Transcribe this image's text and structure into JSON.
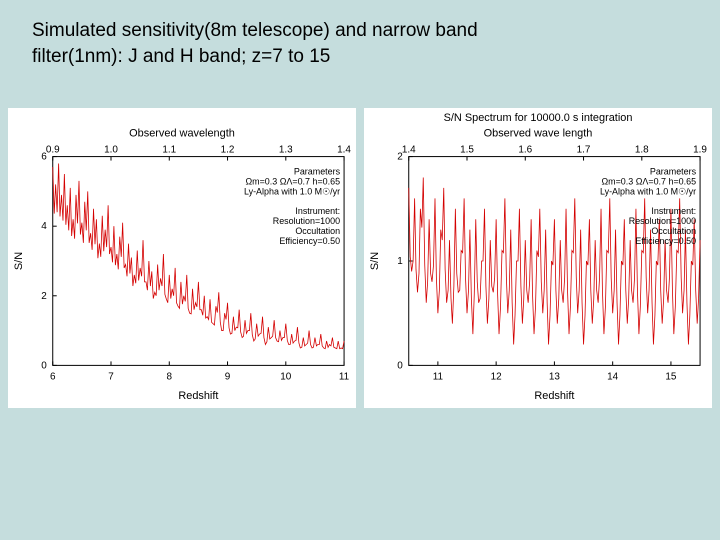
{
  "slide": {
    "title_line1": "Simulated sensitivity(8m telescope) and narrow band",
    "title_line2": "filter(1nm): J and H band; z=7 to 15",
    "background_color": "#c5dddd",
    "title_fontsize": 19,
    "title_color": "#000000"
  },
  "left_chart": {
    "type": "line",
    "title": "",
    "top_axis_label": "Observed wavelength",
    "top_xlim": [
      0.9,
      1.4
    ],
    "top_xticks": [
      0.9,
      1.0,
      1.1,
      1.2,
      1.3,
      1.4
    ],
    "xlabel": "Redshift",
    "xlim": [
      6,
      11
    ],
    "xticks": [
      6,
      7,
      8,
      9,
      10,
      11
    ],
    "ylabel": "S/N",
    "ylim": [
      0,
      6
    ],
    "yticks": [
      0,
      2,
      4,
      6
    ],
    "line_color": "#d40000",
    "line_width": 0.8,
    "background_color": "#ffffff",
    "axis_color": "#000000",
    "param_lines": [
      "Parameters",
      "Ωm=0.3 ΩΛ=0.7 h=0.65",
      "Ly-Alpha with 1.0 M☉/yr",
      "",
      "Instrument:",
      "Resolution=1000",
      "Occultation",
      "Efficiency=0.50"
    ],
    "data": {
      "x": [
        6.0,
        6.05,
        6.1,
        6.15,
        6.2,
        6.25,
        6.3,
        6.35,
        6.4,
        6.45,
        6.5,
        6.55,
        6.6,
        6.65,
        6.7,
        6.75,
        6.8,
        6.85,
        6.9,
        6.95,
        7.0,
        7.05,
        7.1,
        7.15,
        7.2,
        7.25,
        7.3,
        7.35,
        7.4,
        7.45,
        7.5,
        7.55,
        7.6,
        7.65,
        7.7,
        7.75,
        7.8,
        7.85,
        7.9,
        7.95,
        8.0,
        8.05,
        8.1,
        8.15,
        8.2,
        8.25,
        8.3,
        8.35,
        8.4,
        8.45,
        8.5,
        8.55,
        8.6,
        8.65,
        8.7,
        8.75,
        8.8,
        8.85,
        8.9,
        8.95,
        9.0,
        9.05,
        9.1,
        9.15,
        9.2,
        9.25,
        9.3,
        9.35,
        9.4,
        9.45,
        9.5,
        9.55,
        9.6,
        9.65,
        9.7,
        9.75,
        9.8,
        9.85,
        9.9,
        9.95,
        10.0,
        10.05,
        10.1,
        10.15,
        10.2,
        10.25,
        10.3,
        10.35,
        10.4,
        10.45,
        10.5,
        10.55,
        10.6,
        10.65,
        10.7,
        10.75,
        10.8,
        10.85,
        10.9,
        10.95,
        11.0
      ],
      "y": [
        5.7,
        5.2,
        5.8,
        4.9,
        5.5,
        4.6,
        5.1,
        4.2,
        4.9,
        5.3,
        4.1,
        4.7,
        5.0,
        3.8,
        4.5,
        4.2,
        3.5,
        4.3,
        3.9,
        4.6,
        3.4,
        4.0,
        3.2,
        3.7,
        4.1,
        2.9,
        3.5,
        3.1,
        2.6,
        3.3,
        2.8,
        3.6,
        2.4,
        3.0,
        2.7,
        2.1,
        2.9,
        2.5,
        3.2,
        1.9,
        2.6,
        2.2,
        2.8,
        1.7,
        2.4,
        2.0,
        2.6,
        1.5,
        2.2,
        1.8,
        2.4,
        1.6,
        2.0,
        1.4,
        1.9,
        1.2,
        1.7,
        2.1,
        1.0,
        1.5,
        1.8,
        0.9,
        1.4,
        1.1,
        1.6,
        0.8,
        1.3,
        1.0,
        1.5,
        0.7,
        1.2,
        0.9,
        1.4,
        0.6,
        1.1,
        0.8,
        1.3,
        0.7,
        1.0,
        0.8,
        1.2,
        0.6,
        0.9,
        0.7,
        1.1,
        0.5,
        0.8,
        0.6,
        1.0,
        0.5,
        0.8,
        0.6,
        0.9,
        0.5,
        0.7,
        0.6,
        0.8,
        0.5,
        0.7,
        0.5,
        0.7
      ]
    }
  },
  "right_chart": {
    "type": "line",
    "title": "S/N Spectrum for 10000.0 s integration",
    "top_axis_label": "Observed wave length",
    "top_xlim": [
      1.4,
      1.9
    ],
    "top_xticks": [
      1.4,
      1.5,
      1.6,
      1.7,
      1.8,
      1.9
    ],
    "xlabel": "Redshift",
    "xlim": [
      10.5,
      15.5
    ],
    "xticks": [
      11,
      12,
      13,
      14,
      15
    ],
    "ylabel": "S/N",
    "ylim": [
      0,
      2
    ],
    "yticks": [
      0,
      1,
      2
    ],
    "line_color": "#d40000",
    "line_width": 0.8,
    "background_color": "#ffffff",
    "axis_color": "#000000",
    "param_lines": [
      "Parameters",
      "Ωm=0.3 ΩΛ=0.7 h=0.65",
      "Ly-Alpha with 1.0 M☉/yr",
      "",
      "Instrument:",
      "Resolution=1000",
      "Occultation",
      "Efficiency=0.50"
    ],
    "data": {
      "x": [
        10.5,
        10.55,
        10.6,
        10.65,
        10.7,
        10.75,
        10.8,
        10.85,
        10.9,
        10.95,
        11.0,
        11.05,
        11.1,
        11.15,
        11.2,
        11.25,
        11.3,
        11.35,
        11.4,
        11.45,
        11.5,
        11.55,
        11.6,
        11.65,
        11.7,
        11.75,
        11.8,
        11.85,
        11.9,
        11.95,
        12.0,
        12.05,
        12.1,
        12.15,
        12.2,
        12.25,
        12.3,
        12.35,
        12.4,
        12.45,
        12.5,
        12.55,
        12.6,
        12.65,
        12.7,
        12.75,
        12.8,
        12.85,
        12.9,
        12.95,
        13.0,
        13.05,
        13.1,
        13.15,
        13.2,
        13.25,
        13.3,
        13.35,
        13.4,
        13.45,
        13.5,
        13.55,
        13.6,
        13.65,
        13.7,
        13.75,
        13.8,
        13.85,
        13.9,
        13.95,
        14.0,
        14.05,
        14.1,
        14.15,
        14.2,
        14.25,
        14.3,
        14.35,
        14.4,
        14.45,
        14.5,
        14.55,
        14.6,
        14.65,
        14.7,
        14.75,
        14.8,
        14.85,
        14.9,
        14.95,
        15.0,
        15.05,
        15.1,
        15.15,
        15.2,
        15.25,
        15.3,
        15.35,
        15.4,
        15.45,
        15.5
      ],
      "y": [
        1.7,
        0.9,
        1.6,
        0.7,
        1.5,
        1.8,
        0.6,
        1.4,
        0.8,
        1.6,
        0.5,
        1.3,
        1.7,
        0.6,
        1.2,
        0.4,
        1.5,
        0.7,
        1.1,
        1.6,
        0.5,
        1.3,
        0.3,
        1.4,
        0.6,
        1.0,
        1.5,
        0.4,
        1.2,
        0.7,
        1.4,
        0.3,
        1.1,
        1.6,
        0.5,
        1.3,
        0.2,
        1.0,
        1.5,
        0.4,
        1.2,
        0.6,
        1.4,
        0.3,
        1.1,
        1.5,
        0.5,
        1.3,
        0.2,
        1.0,
        1.4,
        0.4,
        1.2,
        0.6,
        1.5,
        0.3,
        1.1,
        1.6,
        0.5,
        1.3,
        0.2,
        1.0,
        1.4,
        0.4,
        1.2,
        0.6,
        1.5,
        0.3,
        1.1,
        1.6,
        0.5,
        1.3,
        0.2,
        1.0,
        1.4,
        0.4,
        1.2,
        0.6,
        1.5,
        0.3,
        1.1,
        1.6,
        0.5,
        1.3,
        0.2,
        1.0,
        1.4,
        0.4,
        1.2,
        0.6,
        1.5,
        0.3,
        1.1,
        1.6,
        0.5,
        1.3,
        0.2,
        1.0,
        1.4,
        0.4,
        1.2
      ]
    }
  }
}
